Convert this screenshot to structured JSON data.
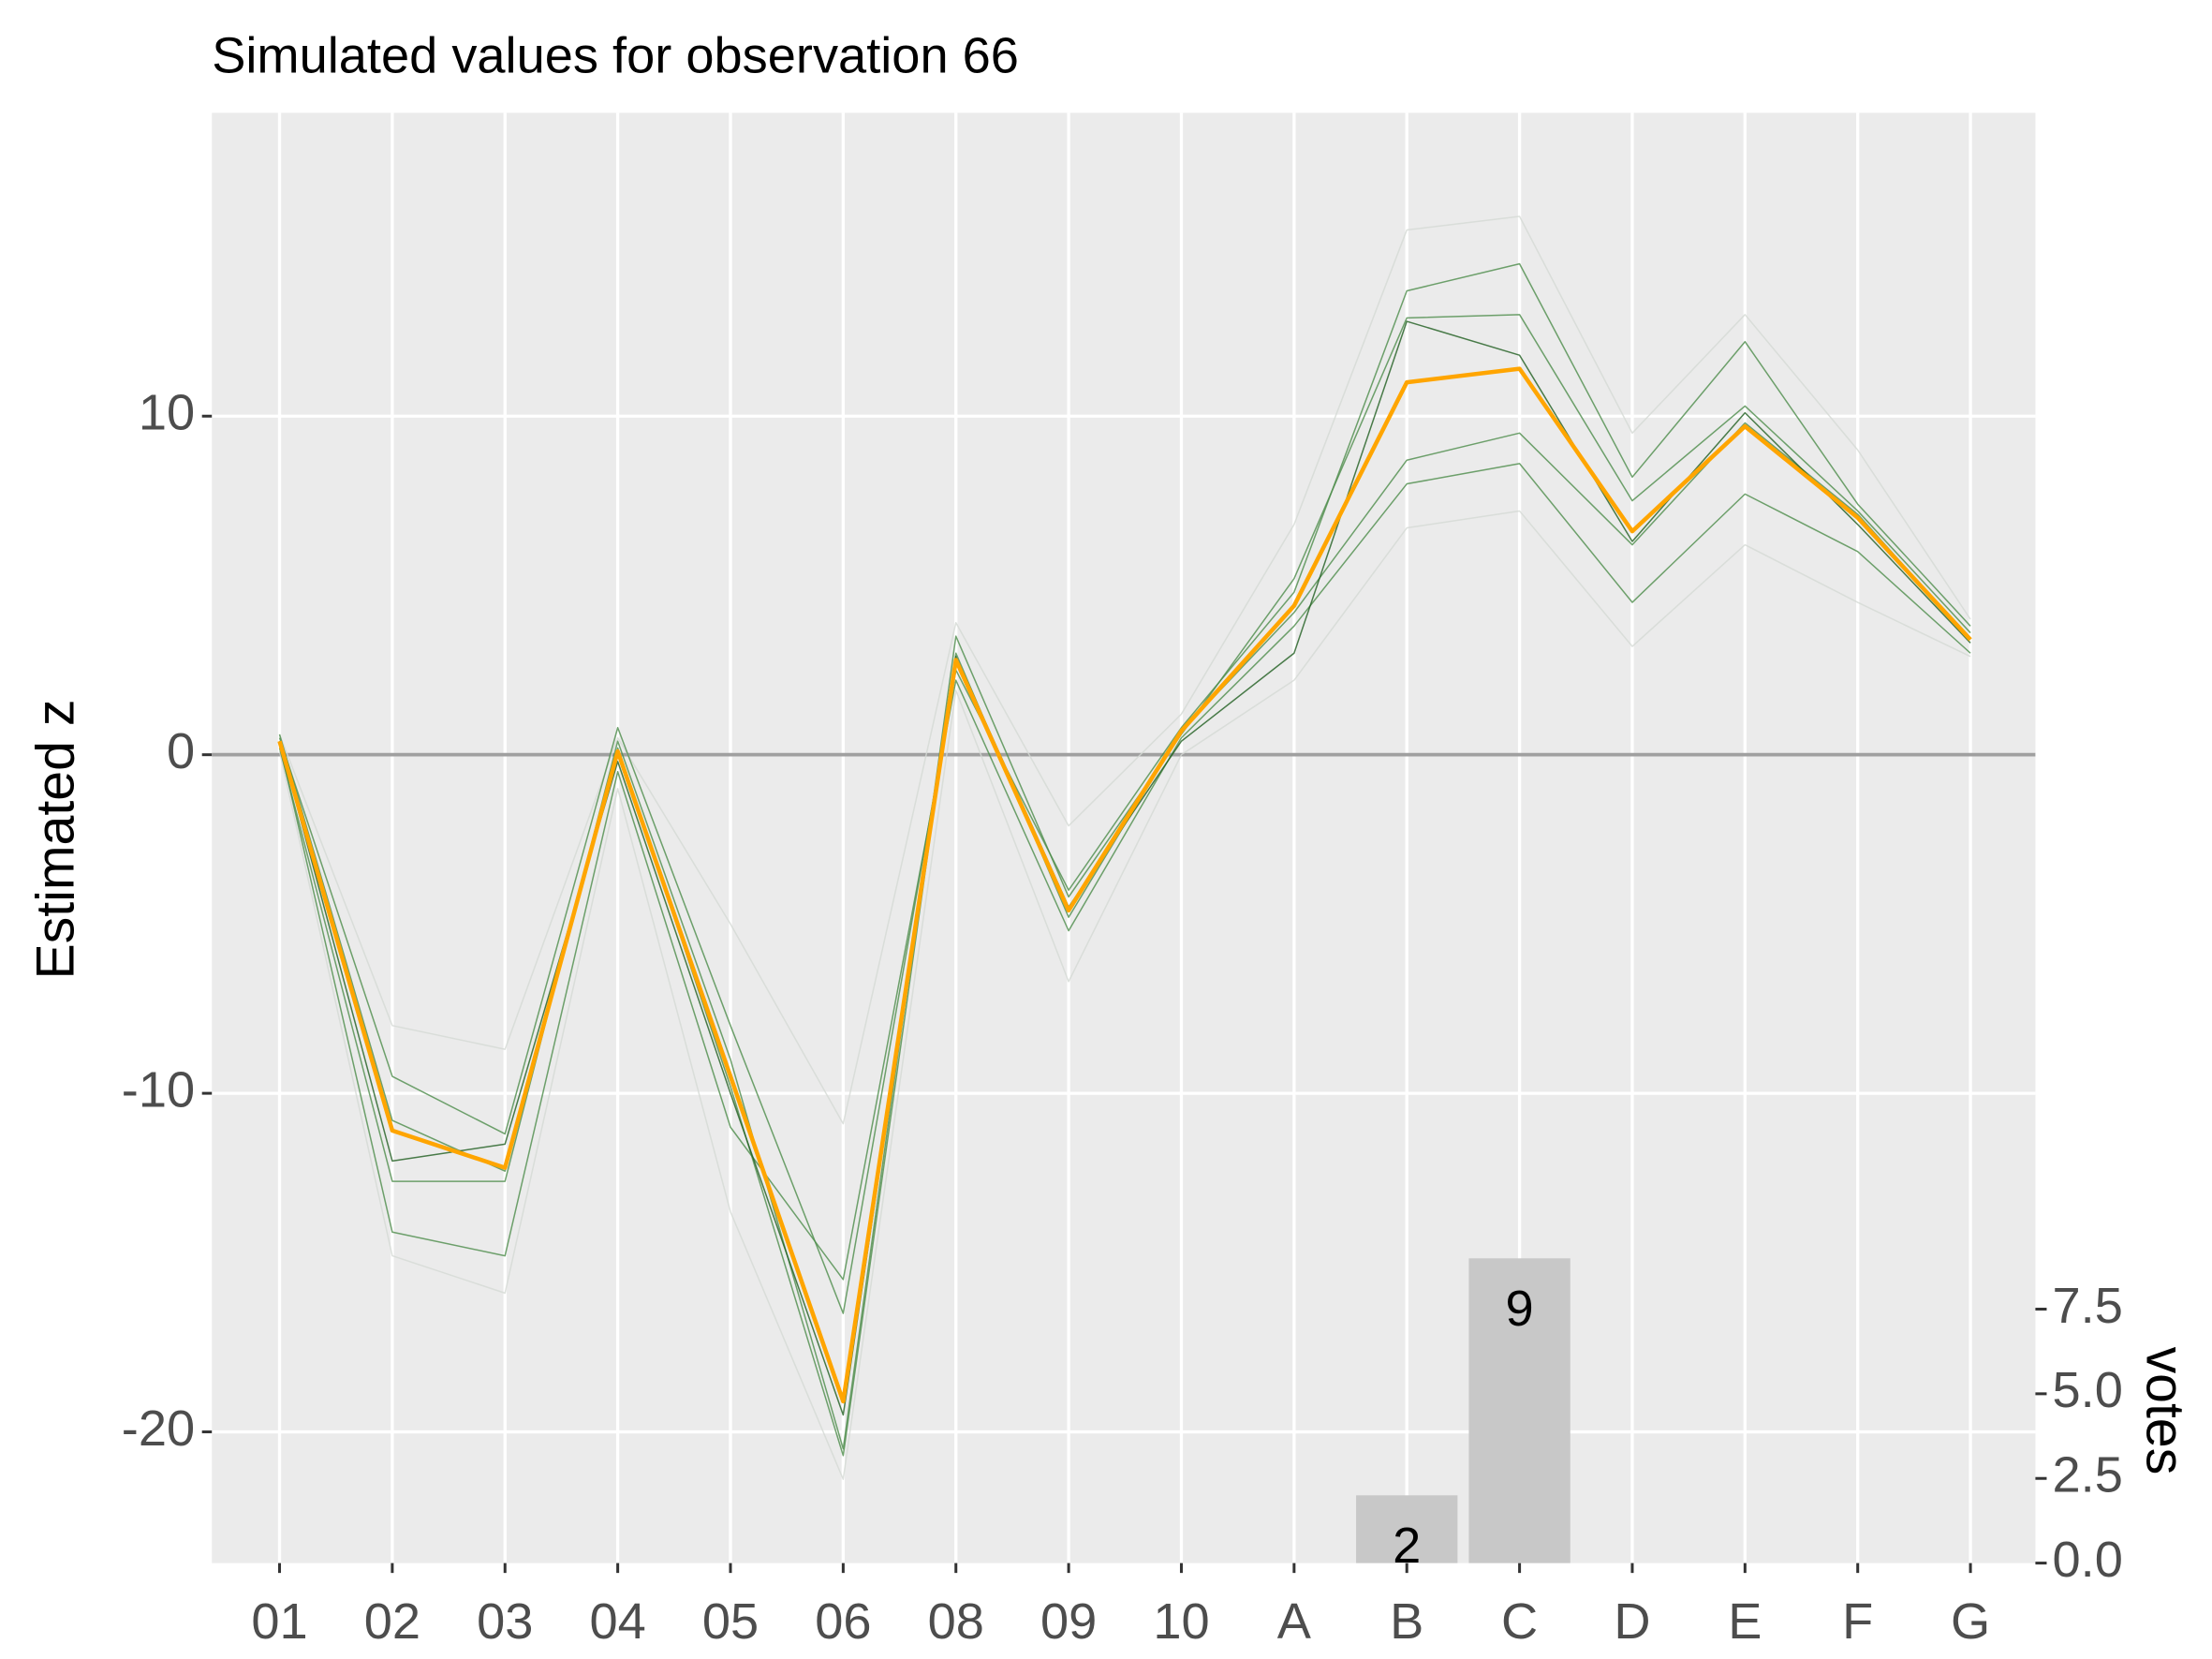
{
  "chart_data": {
    "type": "line",
    "title": "Simulated values for observation 66",
    "ylabel": "Estimated z",
    "y2label": "votes",
    "categories": [
      "01",
      "02",
      "03",
      "04",
      "05",
      "06",
      "08",
      "09",
      "10",
      "A",
      "B",
      "C",
      "D",
      "E",
      "F",
      "G"
    ],
    "ylim": [
      -23.875,
      18.958
    ],
    "yticks": [
      -20,
      -10,
      0,
      10
    ],
    "y2lim": [
      0,
      42.83
    ],
    "y2ticks": [
      {
        "value": 0,
        "label": "0.0"
      },
      2.5,
      {
        "value": 5,
        "label": "5.0"
      },
      7.5
    ],
    "grid": true,
    "hline": 0,
    "series": [
      {
        "color": "#d5d9d5",
        "values": [
          0.6,
          -8.0,
          -8.7,
          0.5,
          -5,
          -10.9,
          3.9,
          -2.1,
          1.2,
          6.8,
          15.5,
          15.9,
          9.5,
          13.0,
          9.0,
          4.0
        ]
      },
      {
        "color": "#d5d9d5",
        "values": [
          0.1,
          -14.8,
          -15.9,
          -1.0,
          -13.5,
          -21.4,
          1.9,
          -6.7,
          0.0,
          2.2,
          6.7,
          7.2,
          3.2,
          6.2,
          4.5,
          2.9
        ]
      },
      {
        "color": "#4c8c4a",
        "values": [
          0.2,
          -12.6,
          -12.6,
          0.4,
          -9,
          -20.5,
          3.5,
          -4.2,
          0.6,
          5.2,
          12.9,
          13.0,
          7.5,
          10.3,
          7.2,
          3.6
        ]
      },
      {
        "color": "#4c8c4a",
        "values": [
          0.5,
          -9.5,
          -11.2,
          0.8,
          -8,
          -16.5,
          2.5,
          -4.0,
          0.8,
          4.8,
          13.7,
          14.5,
          8.2,
          12.2,
          7.4,
          3.8
        ]
      },
      {
        "color": "#4c8c4a",
        "values": [
          0.3,
          -14.1,
          -14.8,
          -0.5,
          -11,
          -15.5,
          2.2,
          -5.2,
          0.5,
          3.8,
          8.0,
          8.6,
          4.5,
          7.7,
          6.0,
          3.0
        ]
      },
      {
        "color": "#4c8c4a",
        "values": [
          0.6,
          -10.8,
          -12.3,
          0.2,
          -9.8,
          -20.7,
          3.0,
          -4.8,
          0.7,
          4.2,
          8.7,
          9.5,
          6.2,
          9.8,
          7.1,
          3.4
        ]
      },
      {
        "color": "#1f5e1f",
        "values": [
          0.4,
          -12.0,
          -11.5,
          -0.2,
          -10,
          -19.5,
          2.9,
          -4.5,
          0.4,
          3.0,
          12.8,
          11.8,
          6.3,
          10.1,
          6.8,
          3.3
        ]
      },
      {
        "color": "#ffa500",
        "values": [
          0.4,
          -11.1,
          -12.2,
          0.1,
          -9.5,
          -19.1,
          2.8,
          -4.6,
          0.7,
          4.4,
          11.0,
          11.4,
          6.6,
          9.7,
          7.0,
          3.4
        ]
      },
      {
        "type": "bar",
        "axis": "y2",
        "color": "#c8c8c8",
        "values": [
          null,
          null,
          null,
          null,
          null,
          null,
          null,
          null,
          null,
          null,
          2,
          9,
          null,
          null,
          null,
          null
        ]
      }
    ]
  }
}
